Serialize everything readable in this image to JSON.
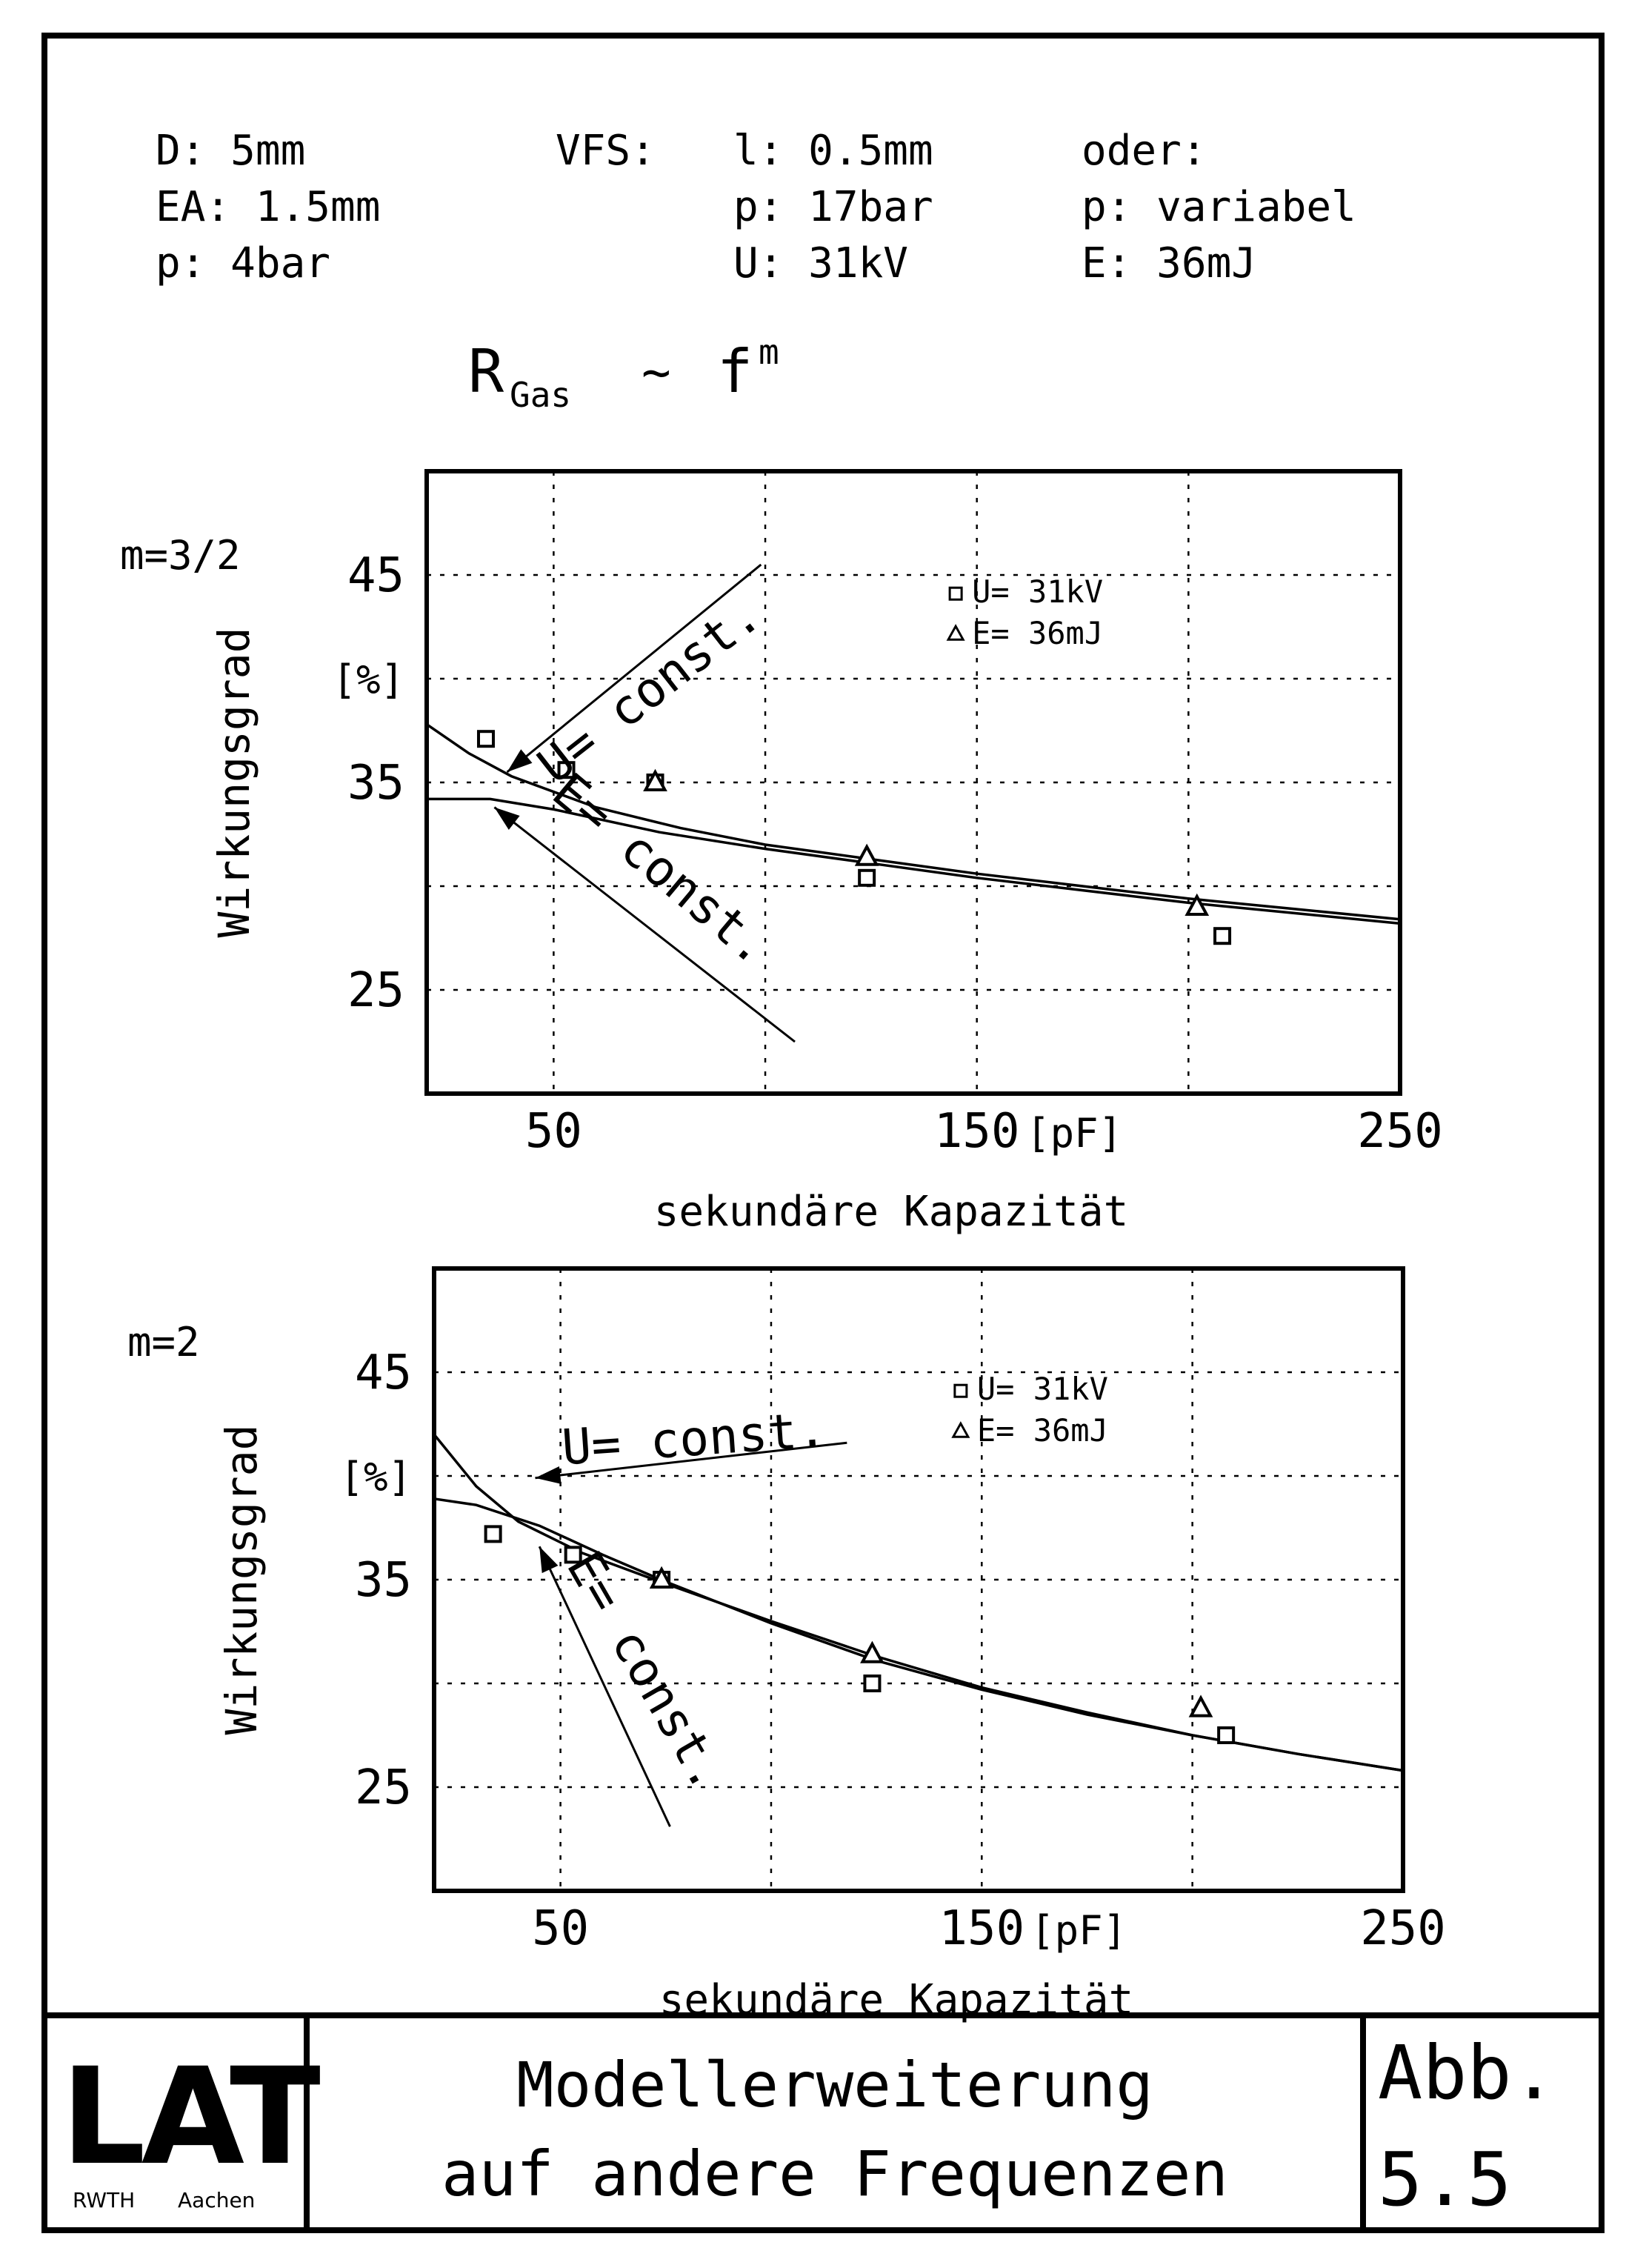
{
  "params": {
    "col1": [
      "D: 5mm",
      "EA: 1.5mm",
      "p: 4bar"
    ],
    "vfs_label": "VFS:",
    "col2": [
      "l: 0.5mm",
      "p: 17bar",
      "U: 31kV"
    ],
    "col3": [
      "oder:",
      "p: variabel",
      "E: 36mJ"
    ]
  },
  "formula": {
    "base": "R",
    "sub": "Gas",
    "rel": "~",
    "f": "f",
    "sup": "m"
  },
  "chart_data": [
    {
      "type": "scatter",
      "label": "m=3/2",
      "xlabel": "sekundäre Kapazität",
      "xunit": "[pF]",
      "ylabel": "Wirkungsgrad",
      "yunit": "[%]",
      "xlim": [
        20,
        250
      ],
      "ylim": [
        20,
        50
      ],
      "xticks": [
        50,
        150,
        250
      ],
      "yticks": [
        25,
        35,
        45
      ],
      "grid": true,
      "legend": [
        "U= 31kV",
        "E= 36mJ"
      ],
      "legend_position": "top-right",
      "series": [
        {
          "name": "U= 31kV",
          "marker": "square",
          "points": [
            [
              34,
              37.1
            ],
            [
              53,
              35.6
            ],
            [
              74,
              35.0
            ],
            [
              124,
              30.4
            ],
            [
              208,
              27.6
            ]
          ]
        },
        {
          "name": "E= 36mJ",
          "marker": "triangle",
          "points": [
            [
              74,
              35.0
            ],
            [
              124,
              31.4
            ],
            [
              202,
              29.0
            ]
          ]
        }
      ],
      "curves": [
        {
          "name": "U= const.",
          "points": [
            [
              20,
              37.8
            ],
            [
              30,
              36.4
            ],
            [
              40,
              35.3
            ],
            [
              60,
              33.8
            ],
            [
              80,
              32.8
            ],
            [
              100,
              32.0
            ],
            [
              125,
              31.3
            ],
            [
              150,
              30.6
            ],
            [
              175,
              30.0
            ],
            [
              200,
              29.4
            ],
            [
              225,
              28.9
            ],
            [
              250,
              28.4
            ]
          ]
        },
        {
          "name": "E= const.",
          "points": [
            [
              20,
              34.2
            ],
            [
              35,
              34.2
            ],
            [
              50,
              33.7
            ],
            [
              75,
              32.6
            ],
            [
              100,
              31.8
            ],
            [
              125,
              31.1
            ],
            [
              150,
              30.4
            ],
            [
              175,
              29.8
            ],
            [
              200,
              29.2
            ],
            [
              225,
              28.7
            ],
            [
              250,
              28.2
            ]
          ]
        }
      ],
      "annotations": [
        {
          "text": "U= const.",
          "from": [
            99,
            45.5
          ],
          "to": [
            39,
            35.5
          ]
        },
        {
          "text": "E= const.",
          "from": [
            107,
            22.5
          ],
          "to": [
            36,
            33.8
          ]
        }
      ]
    },
    {
      "type": "scatter",
      "label": "m=2",
      "xlabel": "sekundäre Kapazität",
      "xunit": "[pF]",
      "ylabel": "Wirkungsgrad",
      "yunit": "[%]",
      "xlim": [
        20,
        250
      ],
      "ylim": [
        20,
        50
      ],
      "xticks": [
        50,
        150,
        250
      ],
      "yticks": [
        25,
        35,
        45
      ],
      "grid": true,
      "legend": [
        "U= 31kV",
        "E= 36mJ"
      ],
      "legend_position": "top-right",
      "series": [
        {
          "name": "U= 31kV",
          "marker": "square",
          "points": [
            [
              34,
              37.2
            ],
            [
              53,
              36.2
            ],
            [
              74,
              35.0
            ],
            [
              124,
              30.0
            ],
            [
              208,
              27.5
            ]
          ]
        },
        {
          "name": "E= 36mJ",
          "marker": "triangle",
          "points": [
            [
              74,
              35.0
            ],
            [
              124,
              31.4
            ],
            [
              202,
              28.8
            ]
          ]
        }
      ],
      "curves": [
        {
          "name": "U= const.",
          "points": [
            [
              20,
              42.0
            ],
            [
              30,
              39.5
            ],
            [
              40,
              37.8
            ],
            [
              55,
              36.3
            ],
            [
              75,
              34.8
            ],
            [
              100,
              33.0
            ],
            [
              125,
              31.3
            ],
            [
              150,
              29.8
            ],
            [
              175,
              28.6
            ],
            [
              200,
              27.5
            ],
            [
              225,
              26.6
            ],
            [
              250,
              25.8
            ]
          ]
        },
        {
          "name": "E= const.",
          "points": [
            [
              20,
              38.9
            ],
            [
              30,
              38.6
            ],
            [
              45,
              37.6
            ],
            [
              60,
              36.2
            ],
            [
              75,
              34.9
            ],
            [
              100,
              32.9
            ],
            [
              125,
              31.1
            ],
            [
              150,
              29.7
            ],
            [
              175,
              28.5
            ],
            [
              200,
              27.5
            ],
            [
              225,
              26.6
            ],
            [
              250,
              25.8
            ]
          ]
        }
      ],
      "annotations": [
        {
          "text": "U= const.",
          "from": [
            118,
            41.6
          ],
          "to": [
            44,
            39.9
          ]
        },
        {
          "text": "E= const.",
          "from": [
            76,
            23.1
          ],
          "to": [
            45,
            36.6
          ]
        }
      ]
    }
  ],
  "footer": {
    "logo": "LAT",
    "logo_sub": [
      "RWTH",
      "Aachen"
    ],
    "title_lines": [
      "Modellerweiterung",
      "auf andere Frequenzen"
    ],
    "abb_label": "Abb.",
    "abb_num": "5.5"
  }
}
